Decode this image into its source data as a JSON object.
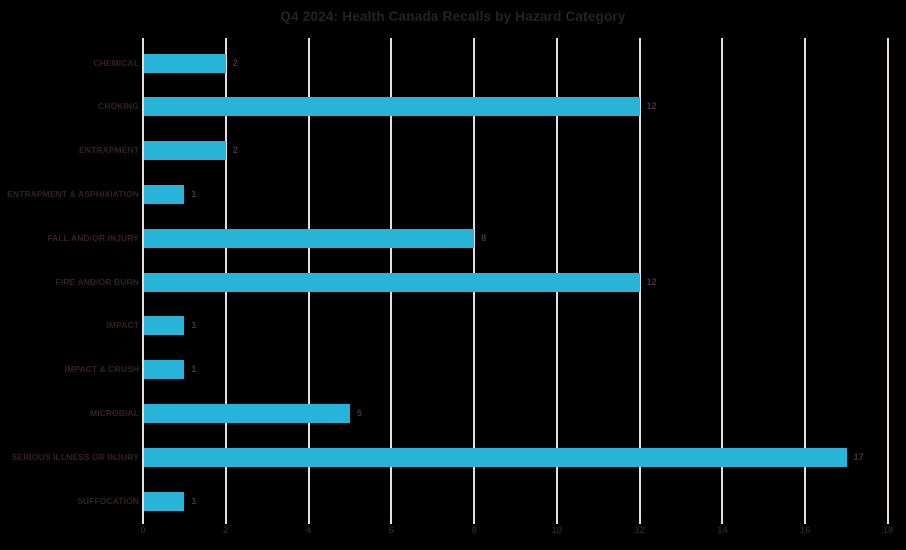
{
  "chart_data": {
    "type": "bar",
    "orientation": "horizontal",
    "title": "Q4 2024: Health Canada Recalls by Hazard Category",
    "categories": [
      "CHEMICAL",
      "CHOKING",
      "ENTRAPMENT",
      "ENTRAPMENT & ASPHIXIATION",
      "FALL AND/OR INJURY",
      "FIRE AND/OR BURN",
      "IMPACT",
      "IMPACT & CRUSH",
      "MICROBIAL",
      "SERIOUS ILLNESS OR INJURY",
      "SUFFOCATION"
    ],
    "values": [
      2,
      12,
      2,
      1,
      8,
      12,
      1,
      1,
      5,
      17,
      1
    ],
    "data_labels": [
      2,
      12,
      2,
      1,
      8,
      12,
      1,
      1,
      5,
      17,
      1
    ],
    "x_ticks": [
      0,
      2,
      4,
      6,
      8,
      10,
      12,
      14,
      16,
      18
    ],
    "xlim": [
      0,
      18
    ],
    "xlabel": "",
    "ylabel": "",
    "grid": true,
    "legend": false,
    "colors": {
      "background": "#000000",
      "bar": "#27b4d8",
      "gridline": "#e7dce3",
      "title_text": "#2a2026",
      "category_text": "#362028",
      "value_text": "#4d3040",
      "tick_text": "#2b2125"
    }
  }
}
